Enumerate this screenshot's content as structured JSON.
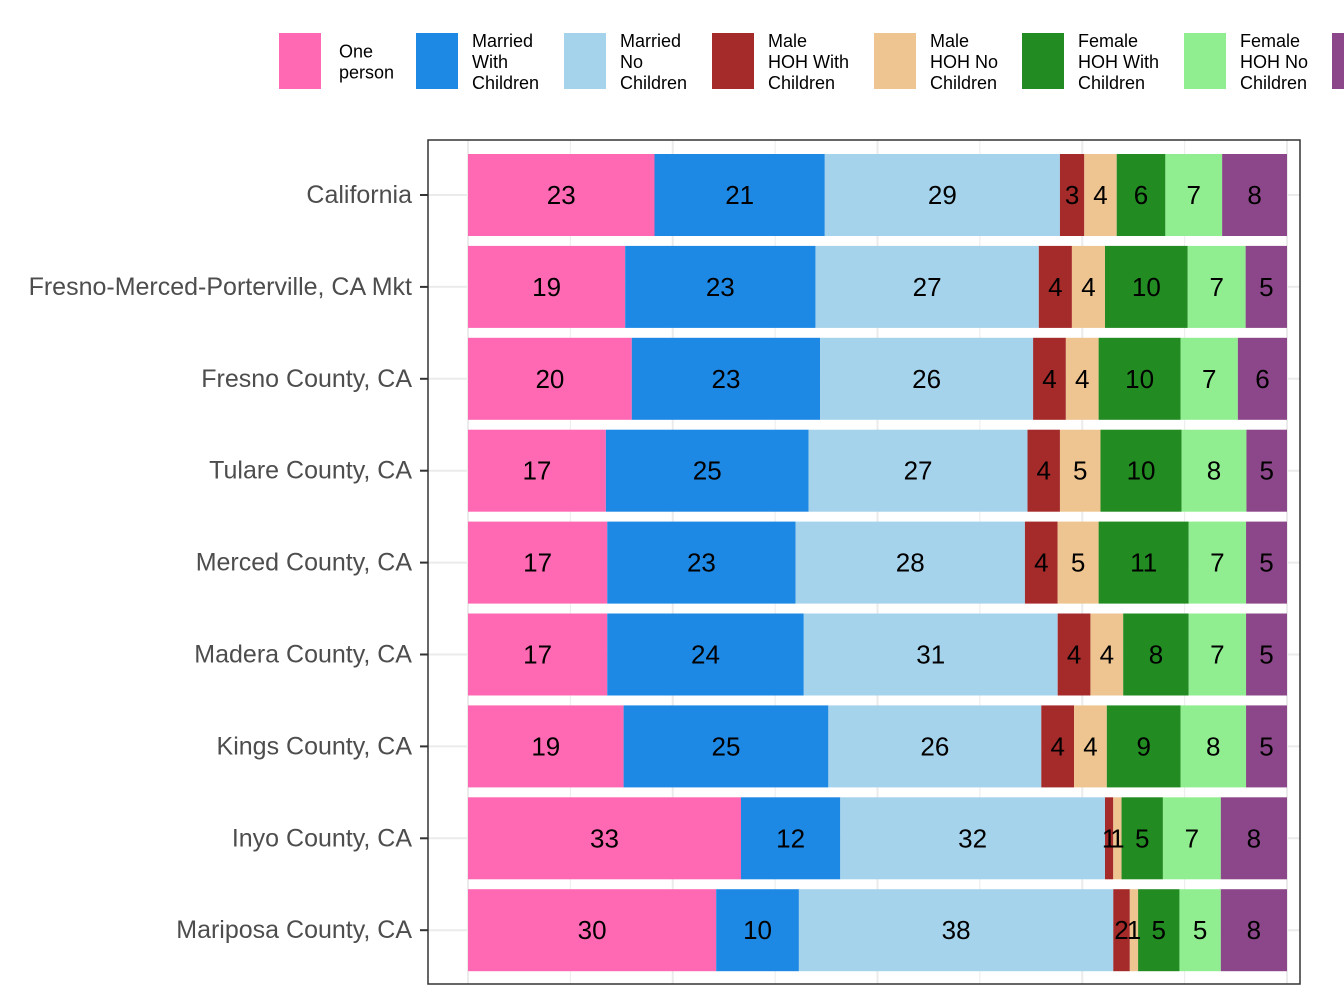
{
  "chart_data": {
    "type": "bar",
    "orientation": "horizontal",
    "stacked": true,
    "title": "",
    "xlabel": "",
    "ylabel": "",
    "xlim": [
      0,
      100
    ],
    "grid": true,
    "legend_position": "top",
    "categories": [
      "California",
      "Fresno-Merced-Porterville, CA Mkt",
      "Fresno County, CA",
      "Tulare County, CA",
      "Merced County, CA",
      "Madera County, CA",
      "Kings County, CA",
      "Inyo County, CA",
      "Mariposa County, CA"
    ],
    "series": [
      {
        "name": "One person",
        "legend_lines": [
          "One",
          "person"
        ],
        "color": "#FF69B4",
        "values": [
          23,
          19,
          20,
          17,
          17,
          17,
          19,
          33,
          30
        ]
      },
      {
        "name": "Married With Children",
        "legend_lines": [
          "Married",
          "With",
          "Children"
        ],
        "color": "#1E88E5",
        "values": [
          21,
          23,
          23,
          25,
          23,
          24,
          25,
          12,
          10
        ]
      },
      {
        "name": "Married No Children",
        "legend_lines": [
          "Married",
          "No",
          "Children"
        ],
        "color": "#A6D3EC",
        "values": [
          29,
          27,
          26,
          27,
          28,
          31,
          26,
          32,
          38
        ]
      },
      {
        "name": "Male HOH With Children",
        "legend_lines": [
          "Male",
          "HOH With",
          "Children"
        ],
        "color": "#A52A2A",
        "values": [
          3,
          4,
          4,
          4,
          4,
          4,
          4,
          1,
          2
        ]
      },
      {
        "name": "Male HOH No Children",
        "legend_lines": [
          "Male",
          "HOH No",
          "Children"
        ],
        "color": "#EEC591",
        "values": [
          4,
          4,
          4,
          5,
          5,
          4,
          4,
          1,
          1
        ]
      },
      {
        "name": "Female HOH With Children",
        "legend_lines": [
          "Female",
          "HOH With",
          "Children"
        ],
        "color": "#228B22",
        "values": [
          6,
          10,
          10,
          10,
          11,
          8,
          9,
          5,
          5
        ]
      },
      {
        "name": "Female HOH No Children",
        "legend_lines": [
          "Female",
          "HOH No",
          "Children"
        ],
        "color": "#90EE90",
        "values": [
          7,
          7,
          7,
          8,
          7,
          7,
          8,
          7,
          5
        ]
      },
      {
        "name": "",
        "legend_lines": [],
        "color": "#8B4789",
        "values": [
          8,
          5,
          6,
          5,
          5,
          5,
          5,
          8,
          8
        ]
      }
    ]
  }
}
